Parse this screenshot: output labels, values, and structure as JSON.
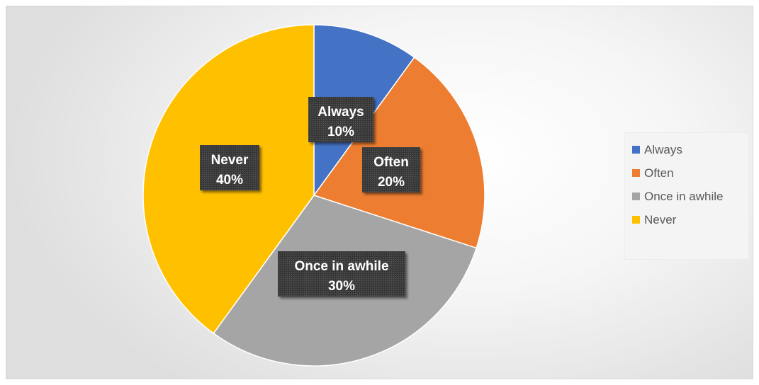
{
  "chart_data": {
    "type": "pie",
    "title": "",
    "categories": [
      "Always",
      "Often",
      "Once in awhile",
      "Never"
    ],
    "values": [
      10,
      20,
      30,
      40
    ],
    "value_labels": [
      "10%",
      "20%",
      "30%",
      "40%"
    ],
    "colors": [
      "#4472c4",
      "#ed7d31",
      "#a5a5a5",
      "#ffc000"
    ],
    "start_angle_deg": 0,
    "direction": "clockwise",
    "legend": {
      "position": "right",
      "entries": [
        "Always",
        "Often",
        "Once in awhile",
        "Never"
      ]
    },
    "data_label_style": "dark patterned box, white bold text"
  }
}
